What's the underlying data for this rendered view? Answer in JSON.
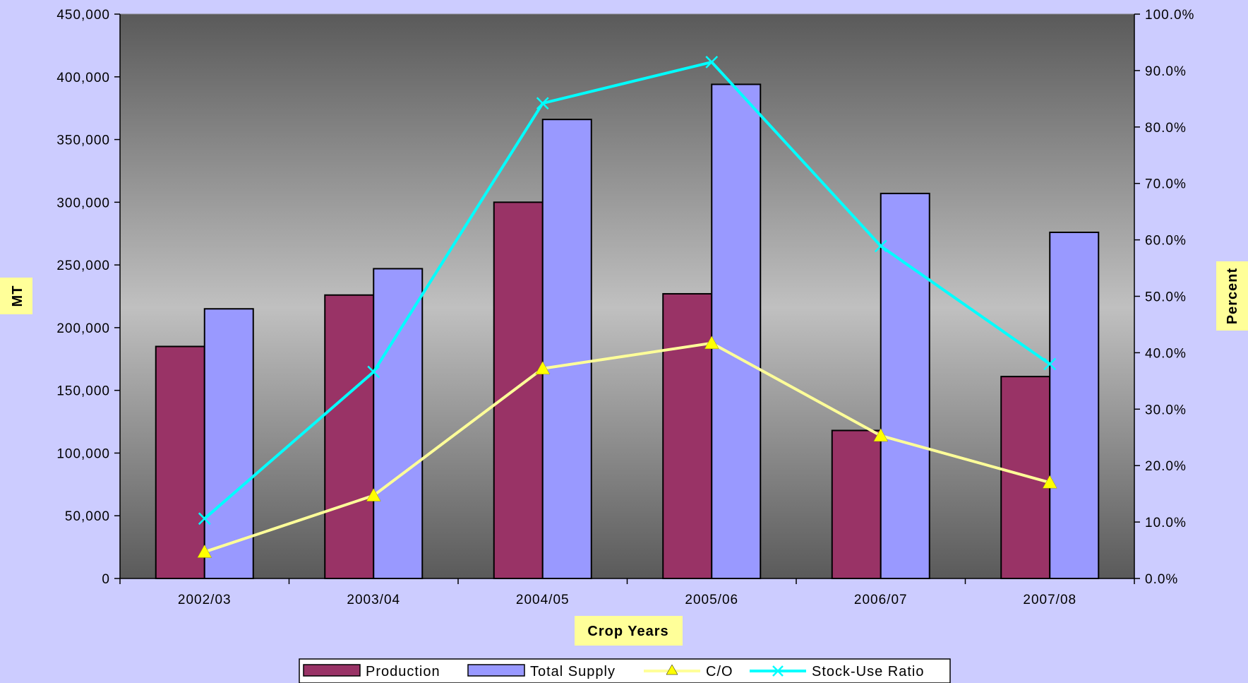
{
  "chart_data": {
    "type": "bar",
    "categories": [
      "2002/03",
      "2003/04",
      "2004/05",
      "2005/06",
      "2006/07",
      "2007/08"
    ],
    "series": [
      {
        "name": "Production",
        "kind": "bar",
        "axis": "left",
        "color": "#993366",
        "values": [
          185000,
          226000,
          300000,
          227000,
          118000,
          161000
        ]
      },
      {
        "name": "Total Supply",
        "kind": "bar",
        "axis": "left",
        "color": "#9999ff",
        "values": [
          215000,
          247000,
          366000,
          394000,
          307000,
          276000
        ]
      },
      {
        "name": "C/O",
        "kind": "line",
        "marker": "triangle",
        "axis": "right",
        "color": "#ffff99",
        "marker_color": "#ffff00",
        "values": [
          4.7,
          14.7,
          37.2,
          41.7,
          25.3,
          17.0
        ]
      },
      {
        "name": "Stock-Use Ratio",
        "kind": "line",
        "marker": "x",
        "axis": "right",
        "color": "#00ffff",
        "values": [
          10.6,
          36.6,
          84.2,
          91.5,
          58.9,
          38.0
        ]
      }
    ],
    "xlabel": "Crop Years",
    "ylabel": "MT",
    "y2label": "Percent",
    "ylim": [
      0,
      450000
    ],
    "y2lim": [
      0,
      100
    ],
    "yticks": [
      "0",
      "50,000",
      "100,000",
      "150,000",
      "200,000",
      "250,000",
      "300,000",
      "350,000",
      "400,000",
      "450,000"
    ],
    "y2ticks": [
      "0.0%",
      "10.0%",
      "20.0%",
      "30.0%",
      "40.0%",
      "50.0%",
      "60.0%",
      "70.0%",
      "80.0%",
      "90.0%",
      "100.0%"
    ],
    "legend_position": "bottom",
    "grid": false,
    "plot_background": "gradient dark-gray to light-gray to dark-gray",
    "page_background": "#ccccff"
  }
}
